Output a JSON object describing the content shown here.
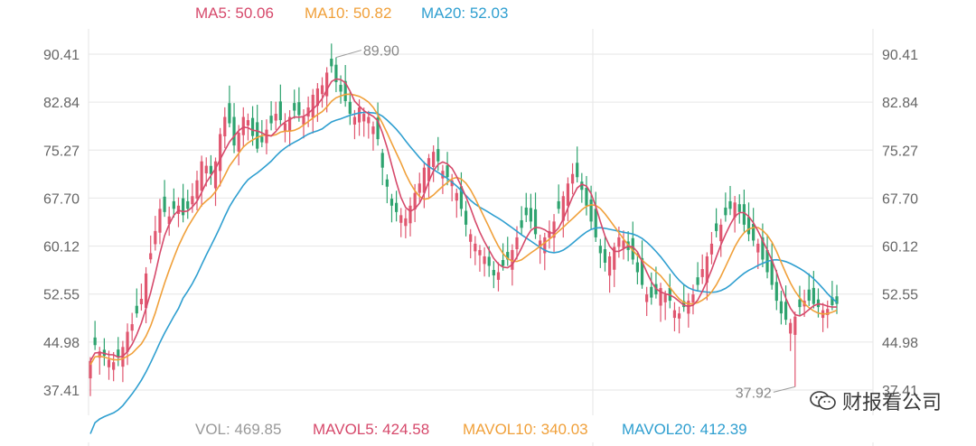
{
  "legend_top": {
    "ma5": {
      "label": "MA5: 50.06",
      "color": "#d6496b"
    },
    "ma10": {
      "label": "MA10: 50.82",
      "color": "#f0a03a"
    },
    "ma20": {
      "label": "MA20: 52.03",
      "color": "#2f9fd0"
    }
  },
  "legend_bottom": {
    "vol": {
      "label": "VOL: 469.85",
      "color": "#999999"
    },
    "mavol5": {
      "label": "MAVOL5: 424.58",
      "color": "#d6496b"
    },
    "mavol10": {
      "label": "MAVOL10: 340.03",
      "color": "#f0a03a"
    },
    "mavol20": {
      "label": "MAVOL20: 412.39",
      "color": "#2f9fd0"
    }
  },
  "watermark": {
    "text": "财报看公司",
    "icon": "wechat-icon"
  },
  "colors": {
    "up": "#e0566f",
    "down": "#2ea36f",
    "grid": "#e6e6e6",
    "axis": "#666666"
  },
  "chart_data": {
    "type": "candlestick",
    "y_ticks": [
      "90.41",
      "82.84",
      "75.27",
      "67.70",
      "60.12",
      "52.55",
      "44.98",
      "37.41"
    ],
    "ylim": [
      33.0,
      95.5
    ],
    "annotations": [
      {
        "label": "89.90",
        "value": 89.9,
        "kind": "max",
        "index": 53
      },
      {
        "label": "37.92",
        "value": 37.92,
        "kind": "min",
        "index": 152
      }
    ],
    "closes": [
      42.0,
      44.5,
      43.5,
      42.8,
      42.2,
      41.8,
      42.6,
      44.2,
      46.6,
      47.8,
      49.5,
      51.8,
      55.8,
      59.0,
      62.5,
      66.0,
      65.5,
      64.8,
      66.0,
      66.5,
      65.0,
      66.0,
      68.0,
      70.5,
      73.5,
      72.8,
      71.5,
      73.5,
      77.8,
      80.5,
      79.5,
      76.0,
      78.0,
      80.5,
      80.0,
      77.5,
      75.5,
      76.5,
      78.5,
      79.5,
      81.0,
      80.0,
      79.5,
      80.5,
      81.5,
      80.8,
      80.5,
      82.0,
      84.0,
      85.0,
      85.5,
      87.5,
      88.5,
      86.0,
      84.5,
      83.0,
      81.0,
      80.5,
      82.0,
      81.0,
      80.5,
      79.0,
      77.0,
      72.5,
      69.5,
      66.5,
      65.5,
      65.0,
      64.5,
      66.5,
      68.5,
      70.0,
      72.5,
      74.0,
      75.0,
      73.5,
      72.0,
      71.0,
      70.5,
      68.5,
      66.0,
      63.5,
      62.0,
      60.5,
      59.5,
      58.5,
      57.0,
      55.5,
      56.0,
      57.0,
      58.0,
      59.5,
      61.5,
      63.0,
      65.0,
      64.0,
      62.0,
      61.0,
      61.5,
      62.5,
      64.0,
      66.0,
      68.0,
      70.0,
      71.5,
      71.0,
      69.0,
      66.5,
      64.0,
      61.5,
      59.0,
      57.5,
      58.5,
      60.0,
      61.5,
      61.0,
      59.5,
      58.0,
      56.0,
      54.0,
      52.5,
      52.0,
      52.5,
      53.5,
      52.5,
      51.5,
      50.0,
      49.5,
      50.5,
      51.5,
      52.5,
      54.0,
      56.5,
      58.5,
      60.5,
      62.5,
      63.5,
      65.0,
      66.0,
      67.0,
      65.5,
      63.5,
      62.0,
      61.0,
      60.5,
      58.0,
      56.0,
      54.0,
      51.5,
      49.5,
      48.5,
      48.0,
      49.0,
      50.5,
      51.5,
      51.5,
      51.0,
      50.5,
      50.0,
      50.2,
      50.8,
      51.0
    ]
  }
}
